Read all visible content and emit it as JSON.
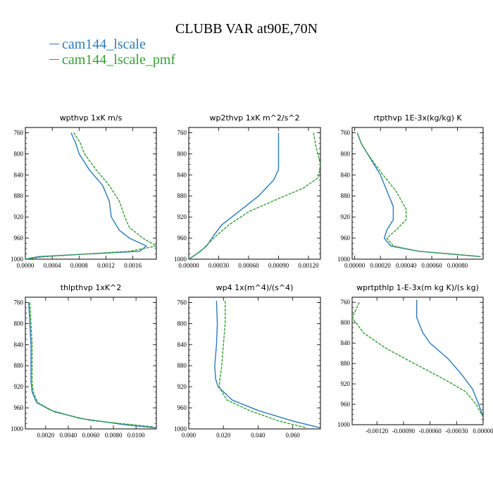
{
  "title": "CLUBB VAR at90E,70N",
  "legend": [
    {
      "label": "cam144_lscale",
      "color": "#2b7bba"
    },
    {
      "label": "cam144_lscale_pmf",
      "color": "#36a034"
    }
  ],
  "chart_data": [
    {
      "type": "line",
      "title": "wpthvp  1xK m/s",
      "xlim": [
        0.0,
        0.00195
      ],
      "ylim": [
        750,
        1000
      ],
      "xticks": [
        "0.0000",
        "0.0004",
        "0.0008",
        "0.0012",
        "0.0016"
      ],
      "xtick_values": [
        0,
        0.0004,
        0.0008,
        0.0012,
        0.0016
      ],
      "yticks": [
        760,
        800,
        840,
        880,
        920,
        960,
        1000
      ],
      "series": [
        {
          "legend_index": 0,
          "dashed": false,
          "points": [
            [
              0.00068,
              760
            ],
            [
              0.00075,
              780
            ],
            [
              0.0008,
              800
            ],
            [
              0.00095,
              830
            ],
            [
              0.00115,
              860
            ],
            [
              0.00125,
              890
            ],
            [
              0.00128,
              920
            ],
            [
              0.0014,
              945
            ],
            [
              0.00155,
              960
            ],
            [
              0.0018,
              975
            ],
            [
              0.0017,
              985
            ],
            [
              0.0002,
              995
            ],
            [
              0.0,
              1000
            ]
          ]
        },
        {
          "legend_index": 1,
          "dashed": true,
          "points": [
            [
              0.00072,
              760
            ],
            [
              0.00082,
              780
            ],
            [
              0.00088,
              800
            ],
            [
              0.00105,
              830
            ],
            [
              0.00125,
              860
            ],
            [
              0.0014,
              890
            ],
            [
              0.00148,
              920
            ],
            [
              0.00155,
              940
            ],
            [
              0.00175,
              960
            ],
            [
              0.00195,
              975
            ],
            [
              0.00155,
              985
            ],
            [
              0.0003,
              995
            ],
            [
              0.0,
              1000
            ]
          ]
        }
      ]
    },
    {
      "type": "line",
      "title": "wp2thvp  1xK m^2/s^2",
      "xlim": [
        0.0,
        0.00132
      ],
      "ylim": [
        750,
        1000
      ],
      "xticks": [
        "0.00000",
        "0.00030",
        "0.00060",
        "0.00090",
        "0.00120"
      ],
      "xtick_values": [
        0,
        0.0003,
        0.0006,
        0.0009,
        0.0012
      ],
      "yticks": [
        760,
        800,
        840,
        880,
        920,
        960,
        1000
      ],
      "series": [
        {
          "legend_index": 0,
          "dashed": false,
          "points": [
            [
              0.0009,
              760
            ],
            [
              0.0009,
              800
            ],
            [
              0.0009,
              830
            ],
            [
              0.00085,
              850
            ],
            [
              0.0007,
              880
            ],
            [
              0.0005,
              910
            ],
            [
              0.00033,
              935
            ],
            [
              0.00025,
              955
            ],
            [
              0.00018,
              975
            ],
            [
              8e-05,
              990
            ],
            [
              0.0,
              1000
            ]
          ]
        },
        {
          "legend_index": 1,
          "dashed": true,
          "points": [
            [
              0.00125,
              760
            ],
            [
              0.00128,
              790
            ],
            [
              0.00132,
              820
            ],
            [
              0.0013,
              845
            ],
            [
              0.00115,
              865
            ],
            [
              0.0009,
              885
            ],
            [
              0.0006,
              910
            ],
            [
              0.0004,
              935
            ],
            [
              0.00025,
              960
            ],
            [
              0.00012,
              985
            ],
            [
              0.0,
              1000
            ]
          ]
        }
      ]
    },
    {
      "type": "line",
      "title": "rtpthvp  1E-3x(kg/kg) K",
      "xlim": [
        -2e-05,
        0.001
      ],
      "ylim": [
        750,
        1000
      ],
      "xticks": [
        "0.00000",
        "0.00020",
        "0.00040",
        "0.00060",
        "0.00080"
      ],
      "xtick_values": [
        0,
        0.0002,
        0.0004,
        0.0006,
        0.0008
      ],
      "yticks": [
        760,
        800,
        840,
        880,
        920,
        960,
        1000
      ],
      "series": [
        {
          "legend_index": 0,
          "dashed": false,
          "points": [
            [
              2e-05,
              760
            ],
            [
              5e-05,
              780
            ],
            [
              0.0001,
              800
            ],
            [
              0.00015,
              820
            ],
            [
              0.0002,
              840
            ],
            [
              0.00025,
              870
            ],
            [
              0.0003,
              900
            ],
            [
              0.0003,
              925
            ],
            [
              0.00025,
              945
            ],
            [
              0.00023,
              960
            ],
            [
              0.00028,
              975
            ],
            [
              0.0005,
              985
            ],
            [
              0.00098,
              995
            ]
          ]
        },
        {
          "legend_index": 1,
          "dashed": true,
          "points": [
            [
              2e-05,
              760
            ],
            [
              5e-05,
              780
            ],
            [
              0.0001,
              800
            ],
            [
              0.00016,
              820
            ],
            [
              0.00022,
              840
            ],
            [
              0.00032,
              870
            ],
            [
              0.0004,
              905
            ],
            [
              0.0004,
              925
            ],
            [
              0.00032,
              945
            ],
            [
              0.00025,
              960
            ],
            [
              0.0003,
              975
            ],
            [
              0.0005,
              985
            ],
            [
              0.00098,
              995
            ]
          ]
        }
      ]
    },
    {
      "type": "line",
      "title": "thlpthvp  1xK^2",
      "xlim": [
        0.0002,
        0.0118
      ],
      "ylim": [
        750,
        1000
      ],
      "xticks": [
        "0.0020",
        "0.0040",
        "0.0060",
        "0.0080",
        "0.0100"
      ],
      "xtick_values": [
        0.002,
        0.004,
        0.006,
        0.008,
        0.01
      ],
      "yticks": [
        760,
        800,
        840,
        880,
        920,
        960,
        1000
      ],
      "series": [
        {
          "legend_index": 0,
          "dashed": false,
          "points": [
            [
              0.0005,
              760
            ],
            [
              0.0006,
              800
            ],
            [
              0.0007,
              840
            ],
            [
              0.0007,
              880
            ],
            [
              0.0007,
              910
            ],
            [
              0.0008,
              930
            ],
            [
              0.0012,
              950
            ],
            [
              0.0025,
              965
            ],
            [
              0.005,
              980
            ],
            [
              0.009,
              992
            ],
            [
              0.0118,
              998
            ]
          ]
        },
        {
          "legend_index": 1,
          "dashed": true,
          "points": [
            [
              0.0006,
              760
            ],
            [
              0.0007,
              800
            ],
            [
              0.0008,
              840
            ],
            [
              0.0008,
              880
            ],
            [
              0.0008,
              910
            ],
            [
              0.0009,
              930
            ],
            [
              0.0013,
              950
            ],
            [
              0.0028,
              968
            ],
            [
              0.006,
              984
            ],
            [
              0.0115,
              996
            ]
          ]
        }
      ]
    },
    {
      "type": "line",
      "title": "wp4  1x(m^4)/(s^4)",
      "xlim": [
        0.0,
        0.076
      ],
      "ylim": [
        750,
        1000
      ],
      "xticks": [
        "0.000",
        "0.020",
        "0.040",
        "0.060"
      ],
      "xtick_values": [
        0,
        0.02,
        0.04,
        0.06
      ],
      "yticks": [
        760,
        800,
        840,
        880,
        920,
        960,
        1000
      ],
      "series": [
        {
          "legend_index": 0,
          "dashed": false,
          "points": [
            [
              0.016,
              757
            ],
            [
              0.0165,
              800
            ],
            [
              0.016,
              840
            ],
            [
              0.015,
              880
            ],
            [
              0.0155,
              905
            ],
            [
              0.017,
              920
            ],
            [
              0.025,
              945
            ],
            [
              0.04,
              965
            ],
            [
              0.06,
              985
            ],
            [
              0.076,
              998
            ]
          ]
        },
        {
          "legend_index": 1,
          "dashed": true,
          "points": [
            [
              0.021,
              757
            ],
            [
              0.021,
              800
            ],
            [
              0.02,
              840
            ],
            [
              0.019,
              880
            ],
            [
              0.018,
              905
            ],
            [
              0.0175,
              920
            ],
            [
              0.022,
              945
            ],
            [
              0.035,
              965
            ],
            [
              0.052,
              985
            ],
            [
              0.068,
              998
            ]
          ]
        }
      ]
    },
    {
      "type": "line",
      "title": "wprtpthlp  1-E-3x(m kg K)/(s kg)",
      "xlim": [
        -0.00148,
        0.0
      ],
      "ylim": [
        750,
        1000
      ],
      "xticks": [
        "-0.00120",
        "-0.00090",
        "-0.00060",
        "-0.00030",
        "0.00000"
      ],
      "xtick_values": [
        -0.0012,
        -0.0009,
        -0.0006,
        -0.0003,
        0.0
      ],
      "yticks": [
        760,
        800,
        840,
        880,
        920,
        960,
        1000
      ],
      "series": [
        {
          "legend_index": 0,
          "dashed": false,
          "points": [
            [
              -0.00075,
              755
            ],
            [
              -0.00075,
              790
            ],
            [
              -0.00068,
              820
            ],
            [
              -0.0006,
              840
            ],
            [
              -0.0004,
              870
            ],
            [
              -0.00025,
              900
            ],
            [
              -0.00012,
              930
            ],
            [
              -5e-05,
              960
            ],
            [
              0.0,
              985
            ]
          ]
        },
        {
          "legend_index": 1,
          "dashed": true,
          "points": [
            [
              -0.0014,
              760
            ],
            [
              -0.00148,
              790
            ],
            [
              -0.00135,
              820
            ],
            [
              -0.0011,
              850
            ],
            [
              -0.00078,
              880
            ],
            [
              -0.00045,
              910
            ],
            [
              -0.0002,
              935
            ],
            [
              -8e-05,
              960
            ],
            [
              0.0,
              985
            ]
          ]
        }
      ]
    }
  ]
}
